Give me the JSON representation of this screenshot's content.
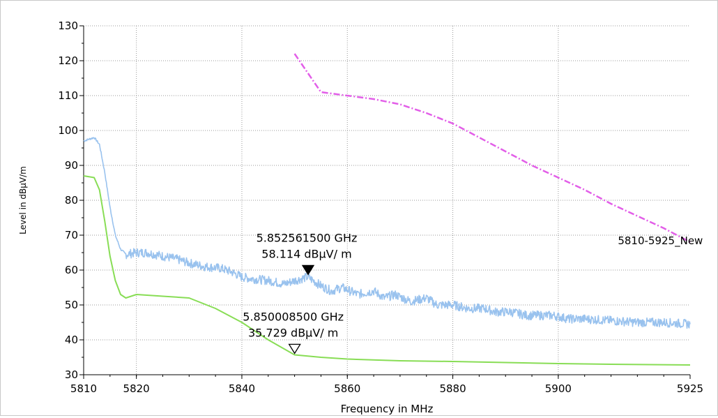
{
  "chart_data": {
    "type": "line",
    "title": "",
    "xlabel": "Frequency in MHz",
    "ylabel": "Level in dBµV/m",
    "xlim": [
      5810,
      5925
    ],
    "ylim": [
      30,
      130
    ],
    "x_ticks": [
      5810,
      5820,
      5840,
      5860,
      5880,
      5900,
      5925
    ],
    "y_ticks": [
      30,
      40,
      50,
      60,
      70,
      80,
      90,
      100,
      110,
      120,
      130
    ],
    "grid": true,
    "series": [
      {
        "color": "#99c2ee",
        "style": "solid-noisy",
        "x": [
          5810,
          5812,
          5813,
          5814,
          5815,
          5816,
          5817,
          5818,
          5820,
          5822,
          5825,
          5828,
          5830,
          5833,
          5836,
          5838,
          5840,
          5842,
          5845,
          5848,
          5850,
          5852.5,
          5855,
          5857,
          5859,
          5862,
          5865,
          5867,
          5869,
          5872,
          5875,
          5877,
          5880,
          5883,
          5886,
          5888,
          5891,
          5894,
          5896,
          5899,
          5902,
          5905,
          5910,
          5915,
          5920,
          5925
        ],
        "y": [
          97,
          98,
          96,
          88,
          78,
          70,
          66,
          64.5,
          65,
          65,
          64,
          63,
          62,
          61,
          60.5,
          59.5,
          58,
          57.5,
          57,
          56,
          57,
          58,
          55.5,
          54,
          55,
          53,
          54,
          52,
          53,
          51,
          52,
          50,
          50,
          49,
          49,
          48,
          48,
          47,
          47,
          47,
          46,
          46,
          45.5,
          45,
          45,
          44.5
        ]
      },
      {
        "color": "#88dd55",
        "style": "solid",
        "x": [
          5810,
          5812,
          5813,
          5814,
          5815,
          5816,
          5817,
          5818,
          5820,
          5825,
          5830,
          5835,
          5840,
          5845,
          5850,
          5855,
          5860,
          5870,
          5880,
          5890,
          5900,
          5910,
          5925
        ],
        "y": [
          87,
          86.5,
          83,
          74,
          64,
          57,
          53,
          52,
          53,
          52.5,
          52,
          49,
          45,
          40,
          35.7,
          35,
          34.5,
          34,
          33.8,
          33.5,
          33.2,
          33,
          32.8
        ]
      },
      {
        "name": "5810-5925_New",
        "color": "#e25ee8",
        "style": "dash-dot",
        "x": [
          5850,
          5855,
          5860,
          5865,
          5870,
          5875,
          5880,
          5885,
          5890,
          5895,
          5900,
          5905,
          5910,
          5915,
          5920,
          5925
        ],
        "y": [
          122,
          111,
          110,
          109,
          107.5,
          105,
          102,
          98,
          94,
          90,
          86.5,
          83,
          79,
          75.5,
          72,
          68
        ]
      }
    ],
    "markers": [
      {
        "x": 5852.5615,
        "y": 58.114,
        "type": "filled-triangle-down",
        "freq_label": "5.852561500 GHz",
        "level_label": "58.114 dBµV/ m"
      },
      {
        "x": 5850.0085,
        "y": 35.729,
        "type": "open-triangle-down",
        "freq_label": "5.850008500 GHz",
        "level_label": "35.729 dBµV/ m"
      }
    ],
    "limit_line_label": "5810-5925_New"
  }
}
